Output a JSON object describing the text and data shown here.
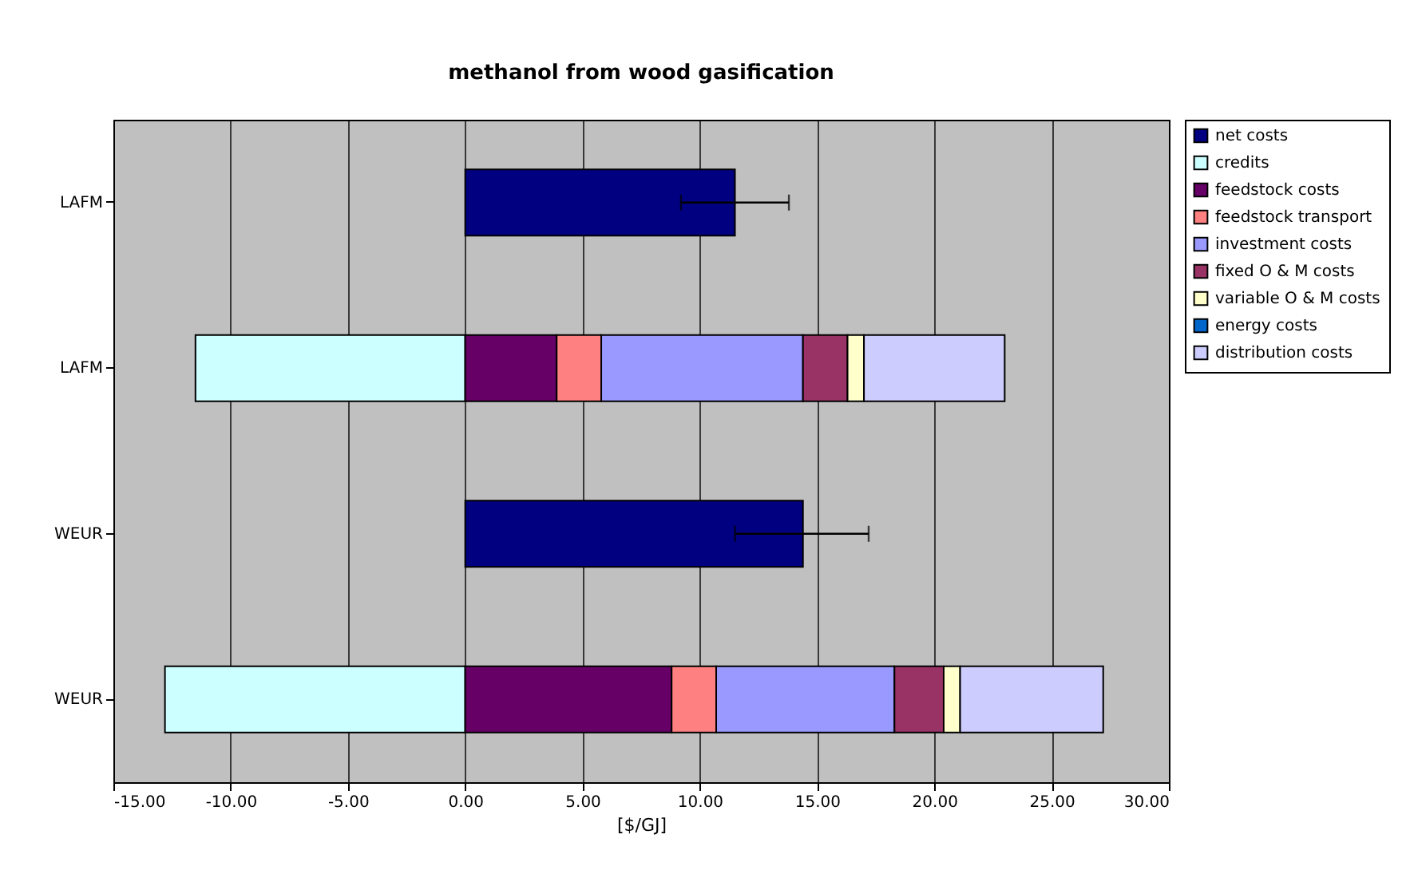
{
  "chart_data": {
    "type": "bar",
    "orientation": "horizontal",
    "stacked": true,
    "title": "methanol from wood gasification",
    "xlabel": "[$/GJ]",
    "categories": [
      "LAFM",
      "LAFM",
      "WEUR",
      "WEUR"
    ],
    "xlim": [
      -15,
      30
    ],
    "xticks": [
      {
        "value": -15,
        "label": "-15.00"
      },
      {
        "value": -10,
        "label": "-10.00"
      },
      {
        "value": -5,
        "label": "-5.00"
      },
      {
        "value": 0,
        "label": "0.00"
      },
      {
        "value": 5,
        "label": "5.00"
      },
      {
        "value": 10,
        "label": "10.00"
      },
      {
        "value": 15,
        "label": "15.00"
      },
      {
        "value": 20,
        "label": "20.00"
      },
      {
        "value": 25,
        "label": "25.00"
      },
      {
        "value": 30,
        "label": "30.00"
      }
    ],
    "grid": "x",
    "legend": "right",
    "series": [
      {
        "name": "net costs",
        "color": "#000080",
        "values": [
          11.5,
          null,
          14.4,
          null
        ],
        "errors": [
          [
            9.2,
            13.8
          ],
          null,
          [
            11.5,
            17.2
          ],
          null
        ]
      },
      {
        "name": "credits",
        "color": "#ccffff",
        "values": [
          null,
          -11.5,
          null,
          -12.8
        ]
      },
      {
        "name": "feedstock costs",
        "color": "#660066",
        "values": [
          null,
          3.9,
          null,
          8.8
        ]
      },
      {
        "name": "feedstock transport",
        "color": "#ff8080",
        "values": [
          null,
          1.9,
          null,
          1.9
        ]
      },
      {
        "name": "investment costs",
        "color": "#9999ff",
        "values": [
          null,
          8.6,
          null,
          7.6
        ]
      },
      {
        "name": "fixed O & M costs",
        "color": "#993366",
        "values": [
          null,
          1.9,
          null,
          2.1
        ]
      },
      {
        "name": "variable O & M costs",
        "color": "#ffffcc",
        "values": [
          null,
          0.7,
          null,
          0.7
        ]
      },
      {
        "name": "energy costs",
        "color": "#0066cc",
        "values": [
          null,
          null,
          null,
          null
        ]
      },
      {
        "name": "distribution costs",
        "color": "#ccccff",
        "values": [
          null,
          6,
          null,
          6.1
        ]
      }
    ]
  }
}
